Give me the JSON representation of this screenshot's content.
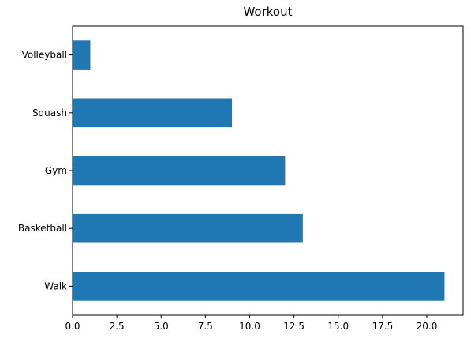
{
  "chart_data": {
    "type": "bar",
    "orientation": "horizontal",
    "title": "Workout",
    "xlabel": "",
    "ylabel": "",
    "categories": [
      "Walk",
      "Basketball",
      "Gym",
      "Squash",
      "Volleyball"
    ],
    "values": [
      21,
      13,
      12,
      9,
      1
    ],
    "xlim": [
      0,
      22.05
    ],
    "xticks": [
      "0.0",
      "2.5",
      "5.0",
      "7.5",
      "10.0",
      "12.5",
      "15.0",
      "17.5",
      "20.0"
    ],
    "bar_color": "#1f77b4",
    "grid": false,
    "legend": "none"
  }
}
